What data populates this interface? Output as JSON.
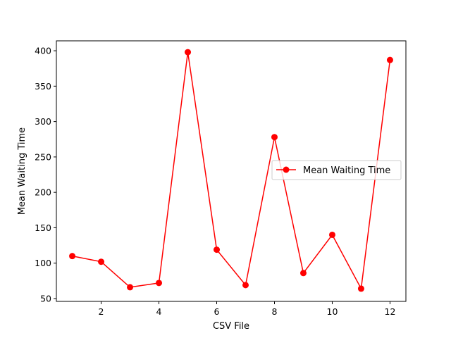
{
  "chart_data": {
    "type": "line",
    "title": "",
    "xlabel": "CSV File",
    "ylabel": "Mean Waiting Time",
    "xlim": [
      0.45,
      12.55
    ],
    "ylim": [
      46,
      414
    ],
    "xticks": [
      2,
      4,
      6,
      8,
      10,
      12
    ],
    "yticks": [
      50,
      100,
      150,
      200,
      250,
      300,
      350,
      400
    ],
    "grid": false,
    "legend_position": "center-right",
    "series": [
      {
        "name": "Mean Waiting Time",
        "color": "#ff0000",
        "marker": "circle",
        "x": [
          1,
          2,
          3,
          4,
          5,
          6,
          7,
          8,
          9,
          10,
          11,
          12
        ],
        "y": [
          110,
          102,
          66,
          72,
          398,
          119,
          69,
          278,
          86,
          140,
          64,
          387
        ]
      }
    ]
  }
}
